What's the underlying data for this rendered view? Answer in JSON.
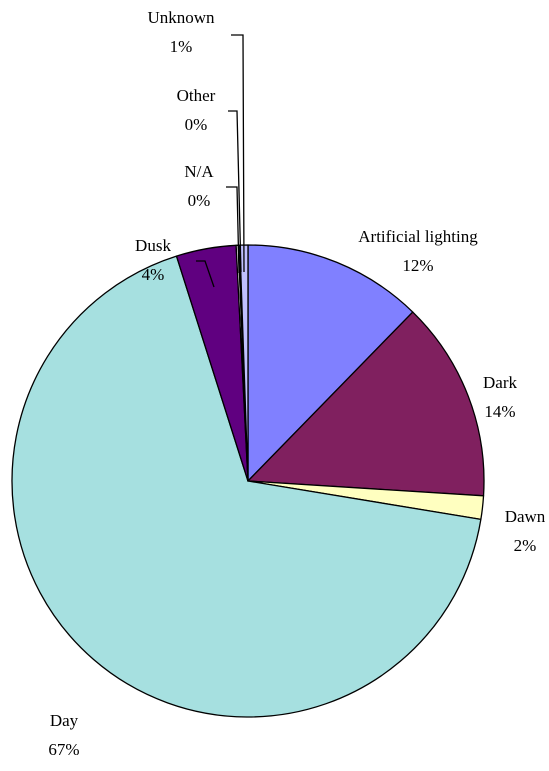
{
  "chart_data": {
    "type": "pie",
    "title": "",
    "legend": "none",
    "start_angle_deg": 0,
    "direction": "clockwise",
    "slices": [
      {
        "label": "Artificial lighting",
        "value": 12.3,
        "percent_label": "12%",
        "color": "#8080ff"
      },
      {
        "label": "Dark",
        "value": 13.7,
        "percent_label": "14%",
        "color": "#80205f"
      },
      {
        "label": "Dawn",
        "value": 1.6,
        "percent_label": "2%",
        "color": "#ffffc0"
      },
      {
        "label": "Day",
        "value": 67.5,
        "percent_label": "67%",
        "color": "#a6e0e0"
      },
      {
        "label": "Dusk",
        "value": 4.1,
        "percent_label": "4%",
        "color": "#600080"
      },
      {
        "label": "N/A",
        "value": 0.15,
        "percent_label": "0%",
        "color": "#ffffff"
      },
      {
        "label": "Other",
        "value": 0.1,
        "percent_label": "0%",
        "color": "#0066cc"
      },
      {
        "label": "Unknown",
        "value": 0.55,
        "percent_label": "1%",
        "color": "#c0c0ff"
      }
    ]
  }
}
